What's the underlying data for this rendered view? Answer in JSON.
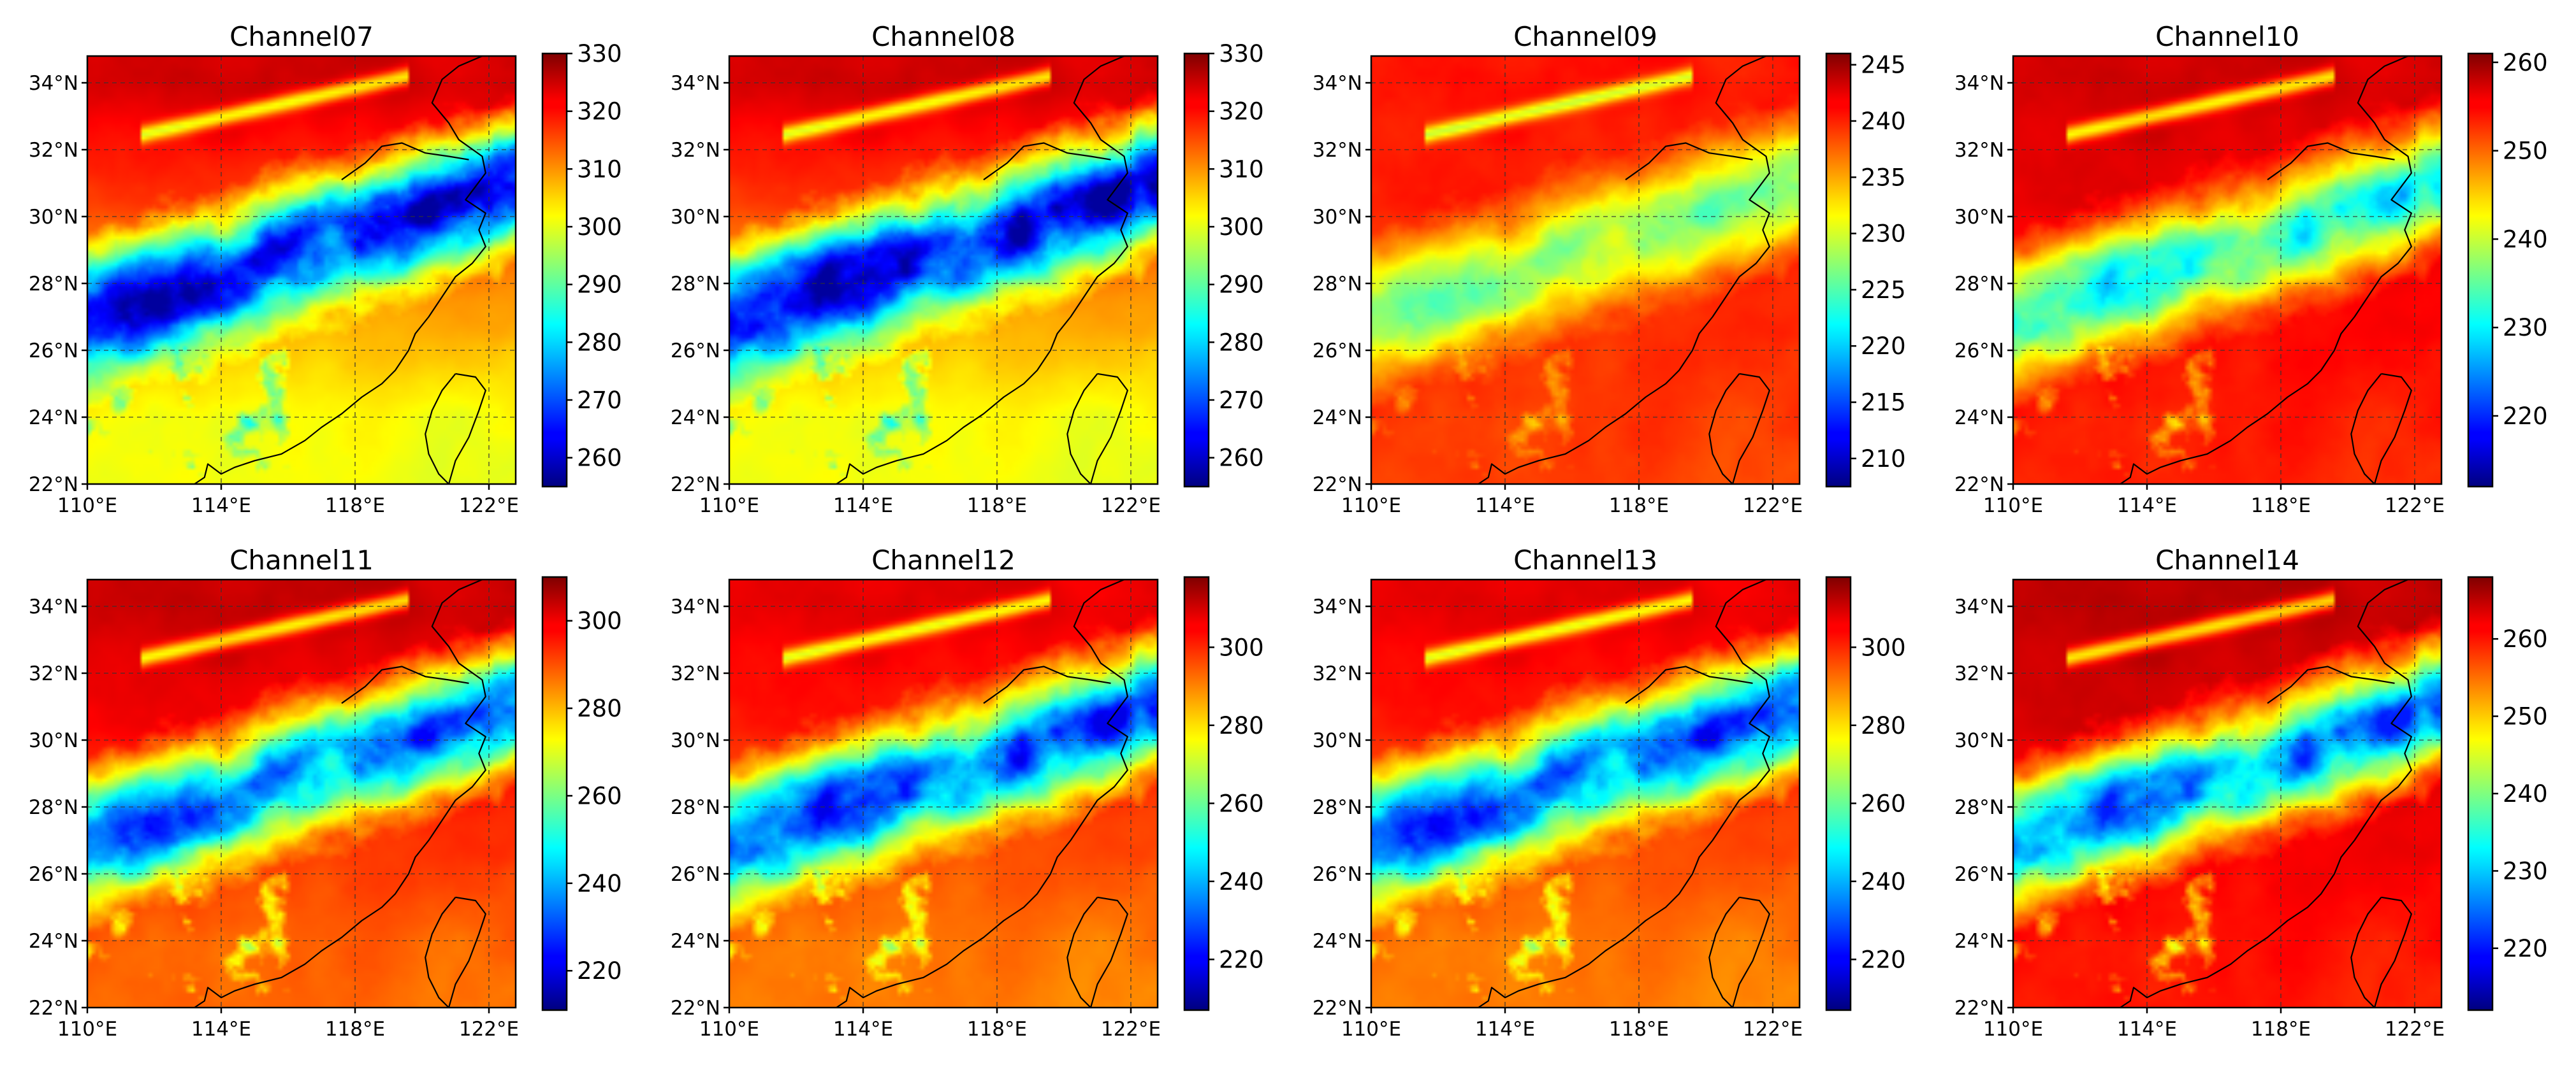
{
  "chart_data": {
    "type": "heatmap",
    "colormap": "jet",
    "units_implied": "brightness temperature",
    "x_ticks": [
      "110°E",
      "114°E",
      "118°E",
      "122°E"
    ],
    "x_tick_values": [
      110,
      114,
      118,
      122
    ],
    "y_ticks": [
      "22°N",
      "24°N",
      "26°N",
      "28°N",
      "30°N",
      "32°N",
      "34°N"
    ],
    "y_tick_values": [
      22,
      24,
      26,
      28,
      30,
      32,
      34
    ],
    "lon_range": [
      110,
      122.8
    ],
    "lat_range": [
      22,
      34.8
    ],
    "grid": true,
    "panels": [
      {
        "title": "Channel07",
        "vmin": 255,
        "vmax": 330,
        "colorbar_ticks": [
          "260",
          "270",
          "280",
          "290",
          "300",
          "310",
          "320",
          "330"
        ],
        "colorbar_tick_values": [
          260,
          270,
          280,
          290,
          300,
          310,
          320,
          330
        ]
      },
      {
        "title": "Channel08",
        "vmin": 255,
        "vmax": 330,
        "colorbar_ticks": [
          "260",
          "270",
          "280",
          "290",
          "300",
          "310",
          "320",
          "330"
        ],
        "colorbar_tick_values": [
          260,
          270,
          280,
          290,
          300,
          310,
          320,
          330
        ]
      },
      {
        "title": "Channel09",
        "vmin": 207.5,
        "vmax": 246,
        "colorbar_ticks": [
          "210",
          "215",
          "220",
          "225",
          "230",
          "235",
          "240",
          "245"
        ],
        "colorbar_tick_values": [
          210,
          215,
          220,
          225,
          230,
          235,
          240,
          245
        ]
      },
      {
        "title": "Channel10",
        "vmin": 212,
        "vmax": 261,
        "colorbar_ticks": [
          "220",
          "230",
          "240",
          "250",
          "260"
        ],
        "colorbar_tick_values": [
          220,
          230,
          240,
          250,
          260
        ]
      },
      {
        "title": "Channel11",
        "vmin": 211,
        "vmax": 310,
        "colorbar_ticks": [
          "220",
          "240",
          "260",
          "280",
          "300"
        ],
        "colorbar_tick_values": [
          220,
          240,
          260,
          280,
          300
        ]
      },
      {
        "title": "Channel12",
        "vmin": 207,
        "vmax": 318,
        "colorbar_ticks": [
          "220",
          "240",
          "260",
          "280",
          "300"
        ],
        "colorbar_tick_values": [
          220,
          240,
          260,
          280,
          300
        ]
      },
      {
        "title": "Channel13",
        "vmin": 207,
        "vmax": 318,
        "colorbar_ticks": [
          "220",
          "240",
          "260",
          "280",
          "300"
        ],
        "colorbar_tick_values": [
          220,
          240,
          260,
          280,
          300
        ]
      },
      {
        "title": "Channel14",
        "vmin": 212,
        "vmax": 268,
        "colorbar_ticks": [
          "220",
          "230",
          "240",
          "250",
          "260"
        ],
        "colorbar_tick_values": [
          220,
          230,
          240,
          250,
          260
        ]
      }
    ]
  }
}
